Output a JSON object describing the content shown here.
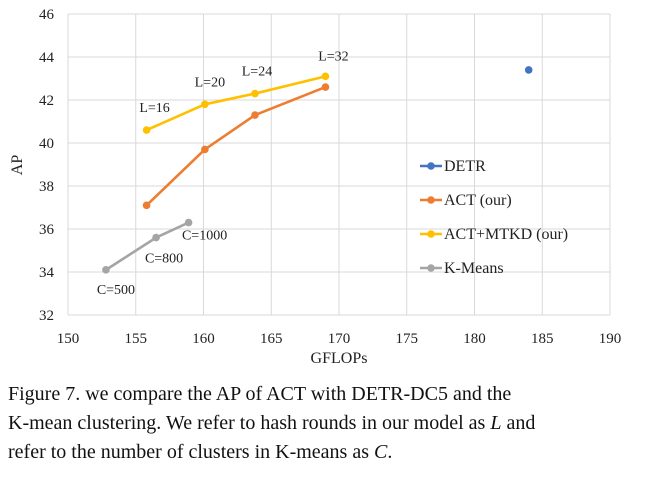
{
  "chart_data": {
    "type": "line",
    "xlabel": "GFLOPs",
    "ylabel": "AP",
    "xlim": [
      150,
      190
    ],
    "ylim": [
      32,
      46
    ],
    "xticks": [
      "150",
      "155",
      "160",
      "165",
      "170",
      "175",
      "180",
      "185",
      "190"
    ],
    "yticks": [
      "32",
      "34",
      "36",
      "38",
      "40",
      "42",
      "44",
      "46"
    ],
    "grid": "major",
    "legend_position": "right",
    "series": [
      {
        "name": "DETR",
        "color": "#4472C4",
        "points": [
          {
            "x": 184,
            "y": 43.4
          }
        ],
        "labels": [
          ""
        ]
      },
      {
        "name": "ACT (our)",
        "color": "#ED7D31",
        "points": [
          {
            "x": 155.8,
            "y": 37.1
          },
          {
            "x": 160.1,
            "y": 39.7
          },
          {
            "x": 163.8,
            "y": 41.3
          },
          {
            "x": 169,
            "y": 42.6
          }
        ],
        "labels": [
          "",
          "",
          "",
          ""
        ]
      },
      {
        "name": "ACT+MTKD (our)",
        "color": "#FFC000",
        "points": [
          {
            "x": 155.8,
            "y": 40.6
          },
          {
            "x": 160.1,
            "y": 41.8
          },
          {
            "x": 163.8,
            "y": 42.3
          },
          {
            "x": 169,
            "y": 43.1
          }
        ],
        "labels": [
          "L=16",
          "L=20",
          "L=24",
          "L=32"
        ]
      },
      {
        "name": "K-Means",
        "color": "#A5A5A5",
        "points": [
          {
            "x": 152.8,
            "y": 34.1
          },
          {
            "x": 156.5,
            "y": 35.6
          },
          {
            "x": 158.9,
            "y": 36.3
          }
        ],
        "labels": [
          "C=500",
          "C=800",
          "C=1000"
        ]
      }
    ]
  },
  "caption": {
    "line1": "Figure 7. we compare the AP of ACT with DETR-DC5 and the",
    "line2_prefix": "K-mean clustering. We refer to hash rounds in our model as ",
    "line2_var": "L",
    "line2_suffix": " and",
    "line3_prefix": "refer to the number of clusters in K-means as ",
    "line3_var": "C",
    "line3_suffix": "."
  }
}
